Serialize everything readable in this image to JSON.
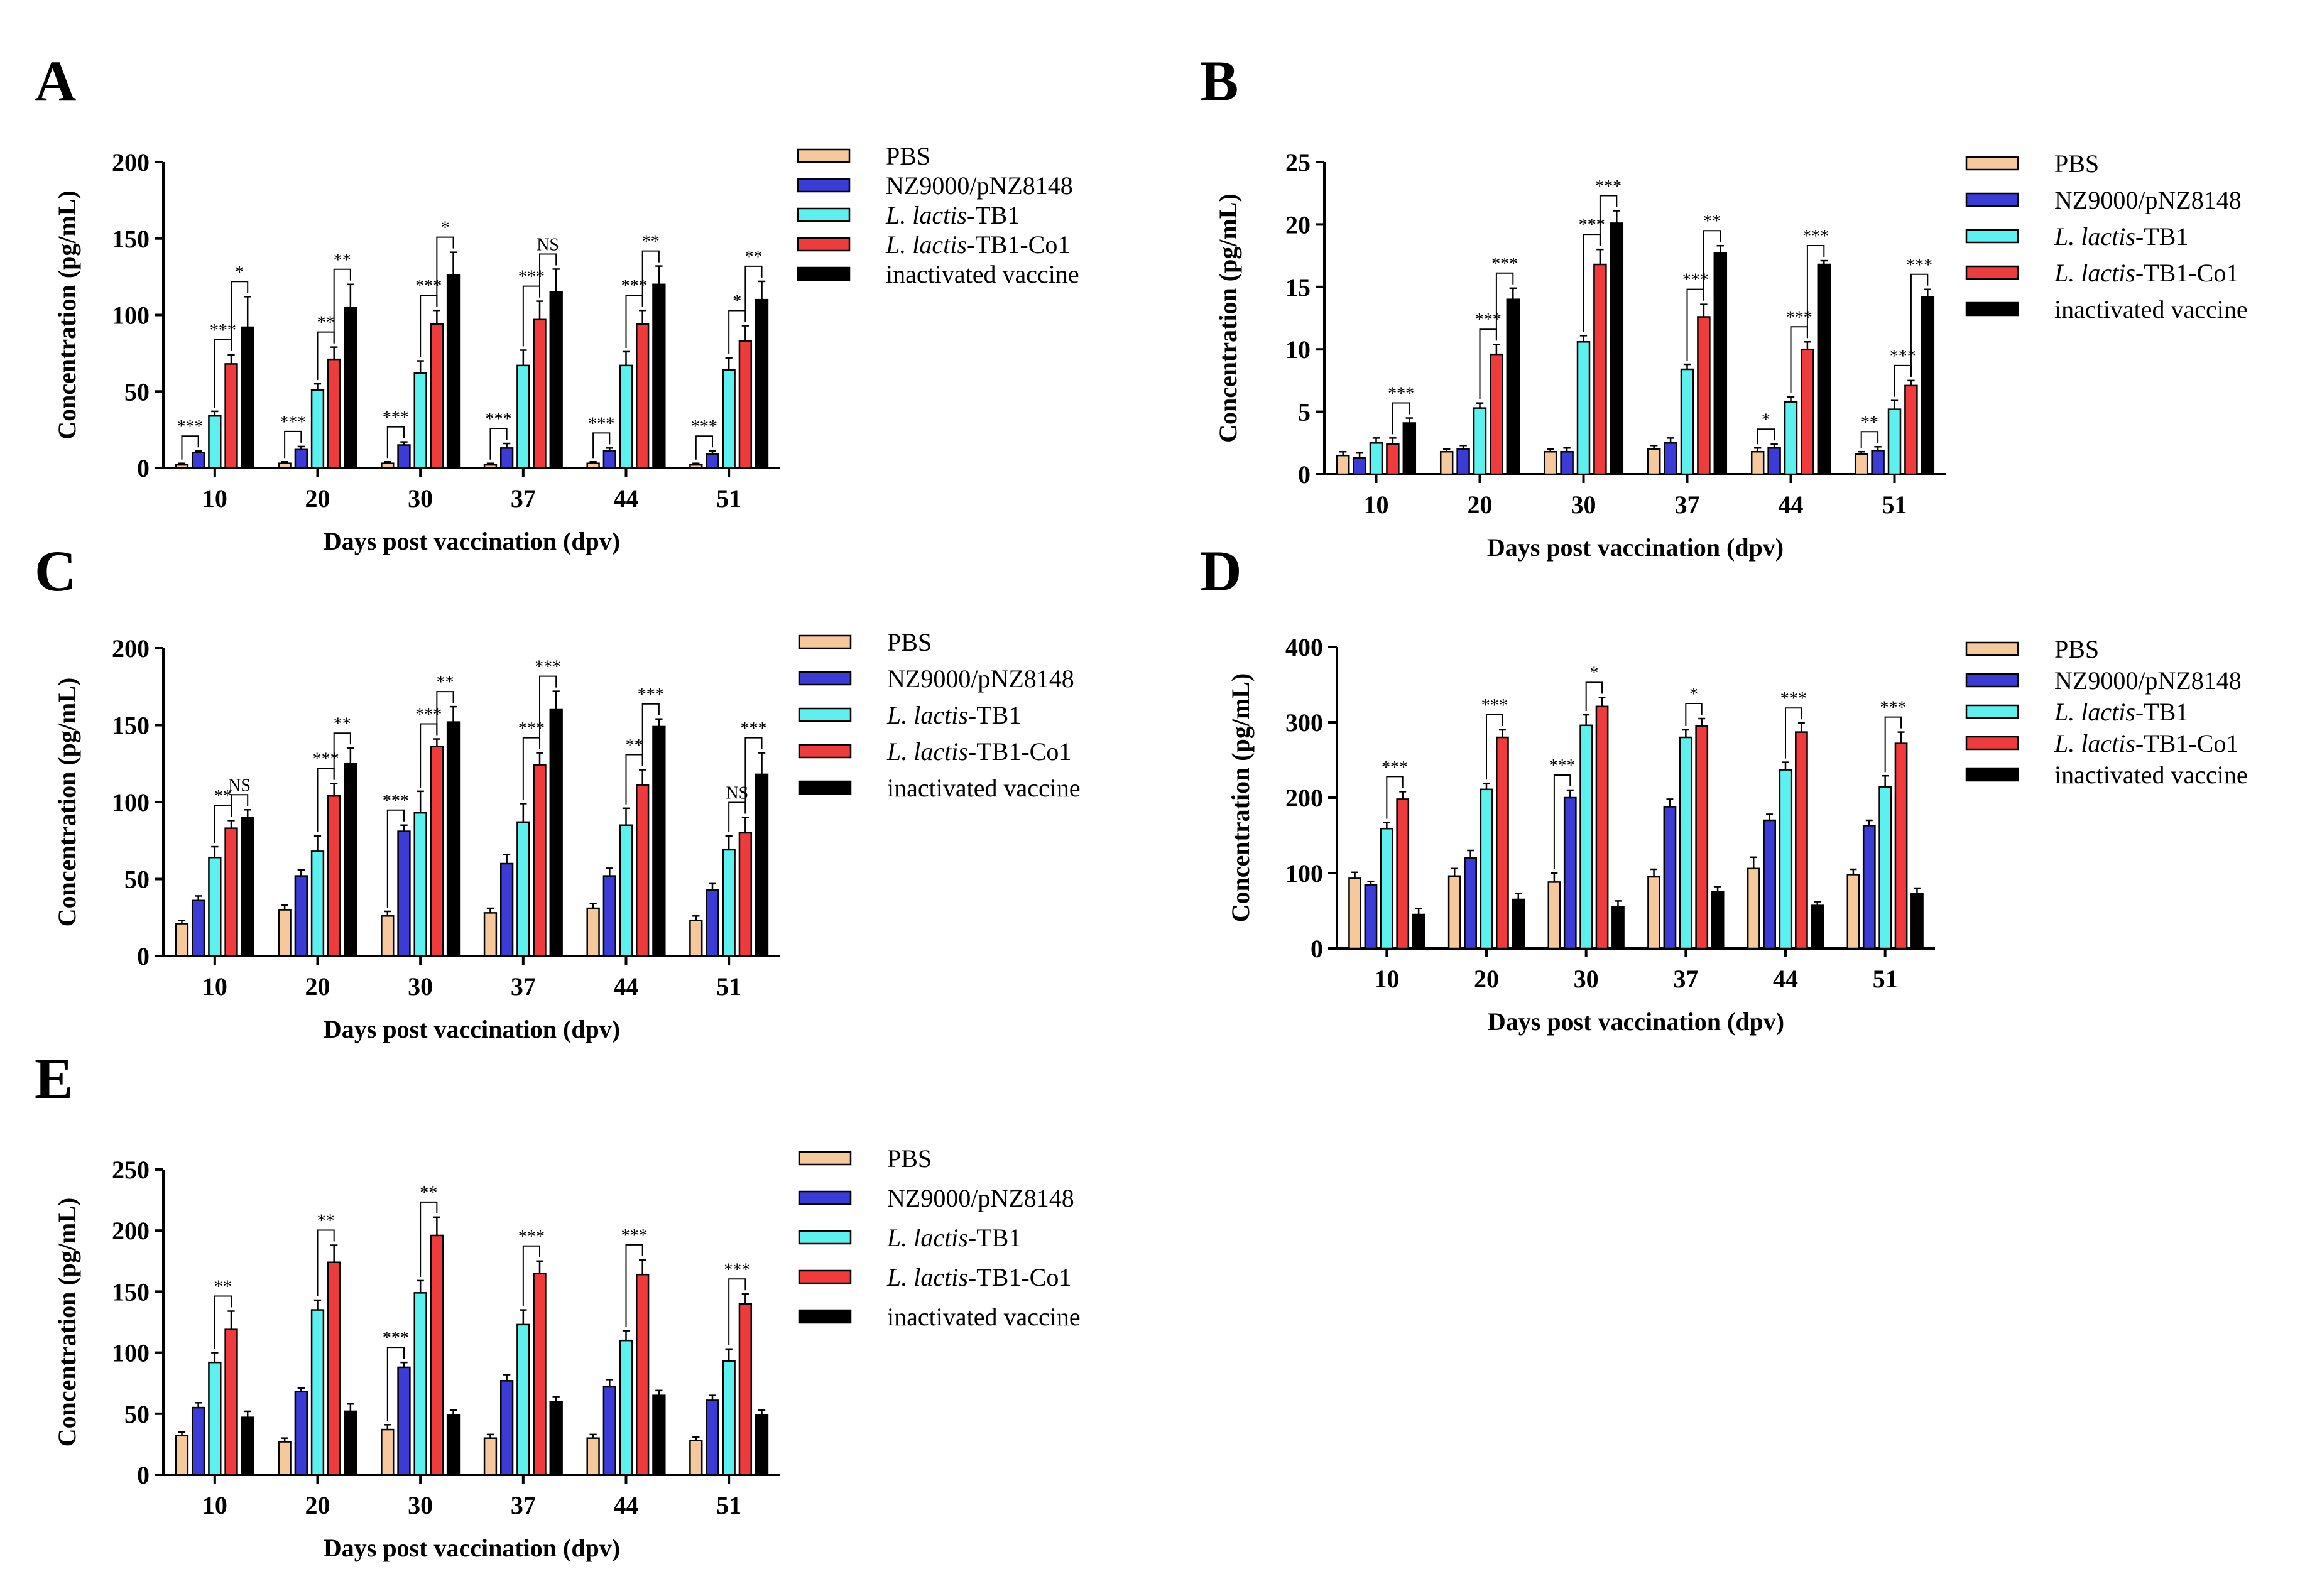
{
  "legend_labels": {
    "PBS": "PBS",
    "NZ": "NZ9000/pNZ8148",
    "TB1_prefix": "L. lactis",
    "TB1_suffix": "-TB1",
    "Co1_prefix": "L. lactis",
    "Co1_suffix": "-TB1-Co1",
    "INACT": "inactivated vaccine"
  },
  "series_colors": {
    "PBS": "#f5c99b",
    "NZ": "#3b3bd6",
    "TB1": "#5cf0ee",
    "Co1": "#ef3b3b",
    "INACT": "#000000"
  },
  "chart_data": [
    {
      "panel": "A",
      "type": "bar",
      "categories": [
        "10",
        "20",
        "30",
        "37",
        "44",
        "51"
      ],
      "series": [
        {
          "name": "PBS",
          "values": [
            2,
            3,
            3,
            2,
            3,
            2
          ],
          "errors": [
            1,
            1,
            1,
            1,
            1,
            1
          ]
        },
        {
          "name": "NZ9000/pNZ8148",
          "values": [
            10,
            12,
            15,
            13,
            11,
            9
          ],
          "errors": [
            1,
            2,
            2,
            3,
            2,
            2
          ]
        },
        {
          "name": "L. lactis-TB1",
          "values": [
            34,
            51,
            62,
            67,
            67,
            64
          ],
          "errors": [
            3,
            4,
            8,
            10,
            9,
            8
          ]
        },
        {
          "name": "L. lactis-TB1-Co1",
          "values": [
            68,
            71,
            94,
            97,
            94,
            83
          ],
          "errors": [
            6,
            8,
            9,
            12,
            9,
            10
          ]
        },
        {
          "name": "inactivated vaccine",
          "values": [
            92,
            105,
            126,
            115,
            120,
            110
          ],
          "errors": [
            20,
            15,
            15,
            15,
            12,
            12
          ]
        }
      ],
      "ylabel": "Concentration (pg/mL)",
      "xlabel": "Days post vaccination  (dpv)",
      "ylim": [
        0,
        200
      ],
      "yticks": [
        "0",
        "50",
        "100",
        "150",
        "200"
      ],
      "significance": [
        {
          "group": 0,
          "from": 0,
          "to": 1,
          "label": "***"
        },
        {
          "group": 0,
          "from": 2,
          "to": 3,
          "label": "***"
        },
        {
          "group": 0,
          "from": 3,
          "to": 4,
          "label": "*"
        },
        {
          "group": 1,
          "from": 0,
          "to": 1,
          "label": "***"
        },
        {
          "group": 1,
          "from": 2,
          "to": 3,
          "label": "**"
        },
        {
          "group": 1,
          "from": 3,
          "to": 4,
          "label": "**"
        },
        {
          "group": 2,
          "from": 0,
          "to": 1,
          "label": "***"
        },
        {
          "group": 2,
          "from": 2,
          "to": 3,
          "label": "***"
        },
        {
          "group": 2,
          "from": 3,
          "to": 4,
          "label": "*"
        },
        {
          "group": 3,
          "from": 0,
          "to": 1,
          "label": "***"
        },
        {
          "group": 3,
          "from": 2,
          "to": 3,
          "label": "***"
        },
        {
          "group": 3,
          "from": 3,
          "to": 4,
          "label": "NS"
        },
        {
          "group": 4,
          "from": 0,
          "to": 1,
          "label": "***"
        },
        {
          "group": 4,
          "from": 2,
          "to": 3,
          "label": "***"
        },
        {
          "group": 4,
          "from": 3,
          "to": 4,
          "label": "**"
        },
        {
          "group": 5,
          "from": 0,
          "to": 1,
          "label": "***"
        },
        {
          "group": 5,
          "from": 2,
          "to": 3,
          "label": "*"
        },
        {
          "group": 5,
          "from": 3,
          "to": 4,
          "label": "**"
        }
      ]
    },
    {
      "panel": "B",
      "type": "bar",
      "categories": [
        "10",
        "20",
        "30",
        "37",
        "44",
        "51"
      ],
      "series": [
        {
          "name": "PBS",
          "values": [
            1.5,
            1.8,
            1.8,
            2.0,
            1.8,
            1.6
          ],
          "errors": [
            0.3,
            0.2,
            0.2,
            0.3,
            0.3,
            0.2
          ]
        },
        {
          "name": "NZ9000/pNZ8148",
          "values": [
            1.3,
            2.0,
            1.8,
            2.5,
            2.1,
            1.9
          ],
          "errors": [
            0.4,
            0.3,
            0.3,
            0.4,
            0.3,
            0.3
          ]
        },
        {
          "name": "L. lactis-TB1",
          "values": [
            2.5,
            5.3,
            10.6,
            8.4,
            5.8,
            5.2
          ],
          "errors": [
            0.4,
            0.4,
            0.5,
            0.4,
            0.4,
            0.7
          ]
        },
        {
          "name": "L. lactis-TB1-Co1",
          "values": [
            2.4,
            9.6,
            16.8,
            12.6,
            10.0,
            7.1
          ],
          "errors": [
            0.5,
            0.8,
            1.2,
            1.0,
            0.6,
            0.4
          ]
        },
        {
          "name": "inactivated vaccine",
          "values": [
            4.1,
            14.0,
            20.1,
            17.7,
            16.8,
            14.2
          ],
          "errors": [
            0.4,
            0.9,
            1.0,
            0.6,
            0.3,
            0.6
          ]
        }
      ],
      "ylabel": "Concentration (pg/mL)",
      "xlabel": "Days post vaccination  (dpv)",
      "ylim": [
        0,
        25
      ],
      "yticks": [
        "0",
        "5",
        "10",
        "15",
        "20",
        "25"
      ],
      "significance": [
        {
          "group": 0,
          "from": 3,
          "to": 4,
          "label": "***"
        },
        {
          "group": 1,
          "from": 2,
          "to": 3,
          "label": "***"
        },
        {
          "group": 1,
          "from": 3,
          "to": 4,
          "label": "***"
        },
        {
          "group": 2,
          "from": 2,
          "to": 3,
          "label": "***"
        },
        {
          "group": 2,
          "from": 3,
          "to": 4,
          "label": "***"
        },
        {
          "group": 3,
          "from": 2,
          "to": 3,
          "label": "***"
        },
        {
          "group": 3,
          "from": 3,
          "to": 4,
          "label": "**"
        },
        {
          "group": 4,
          "from": 0,
          "to": 1,
          "label": "*"
        },
        {
          "group": 4,
          "from": 2,
          "to": 3,
          "label": "***"
        },
        {
          "group": 4,
          "from": 3,
          "to": 4,
          "label": "***"
        },
        {
          "group": 5,
          "from": 0,
          "to": 1,
          "label": "**"
        },
        {
          "group": 5,
          "from": 2,
          "to": 3,
          "label": "***"
        },
        {
          "group": 5,
          "from": 3,
          "to": 4,
          "label": "***"
        }
      ]
    },
    {
      "panel": "C",
      "type": "bar",
      "categories": [
        "10",
        "20",
        "30",
        "37",
        "44",
        "51"
      ],
      "series": [
        {
          "name": "PBS",
          "values": [
            21,
            30,
            26,
            28,
            31,
            23
          ],
          "errors": [
            2,
            3,
            3,
            3,
            3,
            3
          ]
        },
        {
          "name": "NZ9000/pNZ8148",
          "values": [
            36,
            52,
            81,
            60,
            52,
            43
          ],
          "errors": [
            3,
            4,
            4,
            6,
            5,
            4
          ]
        },
        {
          "name": "L. lactis-TB1",
          "values": [
            64,
            68,
            93,
            87,
            85,
            69
          ],
          "errors": [
            7,
            10,
            14,
            12,
            11,
            9
          ]
        },
        {
          "name": "L. lactis-TB1-Co1",
          "values": [
            83,
            104,
            136,
            124,
            111,
            80
          ],
          "errors": [
            5,
            8,
            5,
            8,
            10,
            10
          ]
        },
        {
          "name": "inactivated vaccine",
          "values": [
            90,
            125,
            152,
            160,
            149,
            118
          ],
          "errors": [
            5,
            10,
            10,
            12,
            5,
            14
          ]
        }
      ],
      "ylabel": "Concentration (pg/mL)",
      "xlabel": "Days post vaccination  (dpv)",
      "ylim": [
        0,
        200
      ],
      "yticks": [
        "0",
        "50",
        "100",
        "150",
        "200"
      ],
      "significance": [
        {
          "group": 0,
          "from": 2,
          "to": 3,
          "label": "**"
        },
        {
          "group": 0,
          "from": 3,
          "to": 4,
          "label": "NS"
        },
        {
          "group": 1,
          "from": 2,
          "to": 3,
          "label": "***"
        },
        {
          "group": 1,
          "from": 3,
          "to": 4,
          "label": "**"
        },
        {
          "group": 2,
          "from": 0,
          "to": 1,
          "label": "***"
        },
        {
          "group": 2,
          "from": 2,
          "to": 3,
          "label": "***"
        },
        {
          "group": 2,
          "from": 3,
          "to": 4,
          "label": "**"
        },
        {
          "group": 3,
          "from": 2,
          "to": 3,
          "label": "***"
        },
        {
          "group": 3,
          "from": 3,
          "to": 4,
          "label": "***"
        },
        {
          "group": 4,
          "from": 2,
          "to": 3,
          "label": "**"
        },
        {
          "group": 4,
          "from": 3,
          "to": 4,
          "label": "***"
        },
        {
          "group": 5,
          "from": 2,
          "to": 3,
          "label": "NS"
        },
        {
          "group": 5,
          "from": 3,
          "to": 4,
          "label": "***"
        }
      ]
    },
    {
      "panel": "D",
      "type": "bar",
      "categories": [
        "10",
        "20",
        "30",
        "37",
        "44",
        "51"
      ],
      "series": [
        {
          "name": "PBS",
          "values": [
            93,
            96,
            88,
            95,
            106,
            98
          ],
          "errors": [
            8,
            10,
            12,
            10,
            15,
            7
          ]
        },
        {
          "name": "NZ9000/pNZ8148",
          "values": [
            84,
            120,
            200,
            188,
            170,
            163
          ],
          "errors": [
            5,
            10,
            10,
            10,
            8,
            7
          ]
        },
        {
          "name": "L. lactis-TB1",
          "values": [
            159,
            211,
            296,
            280,
            237,
            214
          ],
          "errors": [
            8,
            8,
            14,
            10,
            10,
            15
          ]
        },
        {
          "name": "L. lactis-TB1-Co1",
          "values": [
            198,
            280,
            321,
            295,
            287,
            272
          ],
          "errors": [
            10,
            10,
            12,
            10,
            12,
            15
          ]
        },
        {
          "name": "inactivated vaccine",
          "values": [
            45,
            65,
            55,
            75,
            57,
            73
          ],
          "errors": [
            8,
            8,
            8,
            7,
            5,
            7
          ]
        }
      ],
      "ylabel": "Concentration (pg/mL)",
      "xlabel": "Days post vaccination  (dpv)",
      "ylim": [
        0,
        400
      ],
      "yticks": [
        "0",
        "100",
        "200",
        "300",
        "400"
      ],
      "significance": [
        {
          "group": 0,
          "from": 2,
          "to": 3,
          "label": "***"
        },
        {
          "group": 1,
          "from": 2,
          "to": 3,
          "label": "***"
        },
        {
          "group": 2,
          "from": 0,
          "to": 1,
          "label": "***"
        },
        {
          "group": 2,
          "from": 2,
          "to": 3,
          "label": "*"
        },
        {
          "group": 3,
          "from": 2,
          "to": 3,
          "label": "*"
        },
        {
          "group": 4,
          "from": 2,
          "to": 3,
          "label": "***"
        },
        {
          "group": 5,
          "from": 2,
          "to": 3,
          "label": "***"
        }
      ]
    },
    {
      "panel": "E",
      "type": "bar",
      "categories": [
        "10",
        "20",
        "30",
        "37",
        "44",
        "51"
      ],
      "series": [
        {
          "name": "PBS",
          "values": [
            32,
            27,
            37,
            30,
            30,
            28
          ],
          "errors": [
            3,
            3,
            4,
            3,
            3,
            3
          ]
        },
        {
          "name": "NZ9000/pNZ8148",
          "values": [
            55,
            68,
            88,
            77,
            72,
            61
          ],
          "errors": [
            4,
            3,
            4,
            5,
            6,
            4
          ]
        },
        {
          "name": "L. lactis-TB1",
          "values": [
            92,
            135,
            149,
            123,
            110,
            93
          ],
          "errors": [
            8,
            8,
            10,
            12,
            8,
            10
          ]
        },
        {
          "name": "L. lactis-TB1-Co1",
          "values": [
            119,
            174,
            196,
            165,
            164,
            140
          ],
          "errors": [
            15,
            14,
            15,
            10,
            12,
            8
          ]
        },
        {
          "name": "inactivated vaccine",
          "values": [
            47,
            52,
            49,
            60,
            65,
            49
          ],
          "errors": [
            5,
            6,
            4,
            4,
            4,
            4
          ]
        }
      ],
      "ylabel": "Concentration (pg/mL)",
      "xlabel": "Days post vaccination  (dpv)",
      "ylim": [
        0,
        250
      ],
      "yticks": [
        "0",
        "50",
        "100",
        "150",
        "200",
        "250"
      ],
      "significance": [
        {
          "group": 0,
          "from": 2,
          "to": 3,
          "label": "**"
        },
        {
          "group": 1,
          "from": 2,
          "to": 3,
          "label": "**"
        },
        {
          "group": 2,
          "from": 0,
          "to": 1,
          "label": "***"
        },
        {
          "group": 2,
          "from": 2,
          "to": 3,
          "label": "**"
        },
        {
          "group": 3,
          "from": 2,
          "to": 3,
          "label": "***"
        },
        {
          "group": 4,
          "from": 2,
          "to": 3,
          "label": "***"
        },
        {
          "group": 5,
          "from": 2,
          "to": 3,
          "label": "***"
        }
      ]
    }
  ]
}
